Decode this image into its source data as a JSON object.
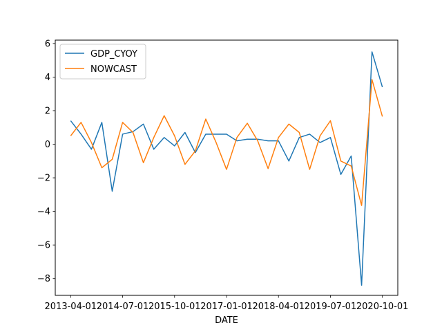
{
  "chart_data": {
    "type": "line",
    "xlabel": "DATE",
    "ylabel": "",
    "title": "",
    "x_tick_labels": [
      "2013-04-01",
      "2014-07-01",
      "2015-10-01",
      "2017-01-01",
      "2018-04-01",
      "2019-07-01",
      "2020-10-01"
    ],
    "y_ticks": [
      -8,
      -6,
      -4,
      -2,
      0,
      2,
      4,
      6
    ],
    "ylim": [
      -9.0,
      6.2
    ],
    "legend_position": "upper-left",
    "grid": false,
    "x": [
      "2013-04-01",
      "2013-07-01",
      "2013-10-01",
      "2014-01-01",
      "2014-04-01",
      "2014-07-01",
      "2014-10-01",
      "2015-01-01",
      "2015-04-01",
      "2015-07-01",
      "2015-10-01",
      "2016-01-01",
      "2016-04-01",
      "2016-07-01",
      "2016-10-01",
      "2017-01-01",
      "2017-04-01",
      "2017-07-01",
      "2017-10-01",
      "2018-01-01",
      "2018-04-01",
      "2018-07-01",
      "2018-10-01",
      "2019-01-01",
      "2019-04-01",
      "2019-07-01",
      "2019-10-01",
      "2020-01-01",
      "2020-04-01",
      "2020-07-01",
      "2020-10-01"
    ],
    "series": [
      {
        "name": "GDP_CYOY",
        "color": "#1f77b4",
        "values": [
          1.4,
          0.6,
          -0.3,
          1.3,
          -2.8,
          0.6,
          0.75,
          1.2,
          -0.3,
          0.4,
          -0.1,
          0.7,
          -0.5,
          0.6,
          0.6,
          0.6,
          0.2,
          0.3,
          0.3,
          0.2,
          0.2,
          -1.0,
          0.4,
          0.6,
          0.1,
          0.4,
          -1.8,
          -0.7,
          -8.4,
          5.5,
          3.4
        ]
      },
      {
        "name": "NOWCAST",
        "color": "#ff7f0e",
        "values": [
          0.5,
          1.3,
          0.1,
          -1.4,
          -0.9,
          1.3,
          0.7,
          -1.1,
          0.4,
          1.7,
          0.5,
          -1.2,
          -0.4,
          1.5,
          0.1,
          -1.5,
          0.4,
          1.25,
          0.2,
          -1.45,
          0.4,
          1.2,
          0.7,
          -1.5,
          0.5,
          1.4,
          -1.0,
          -1.3,
          -3.65,
          3.85,
          1.65
        ]
      }
    ]
  }
}
